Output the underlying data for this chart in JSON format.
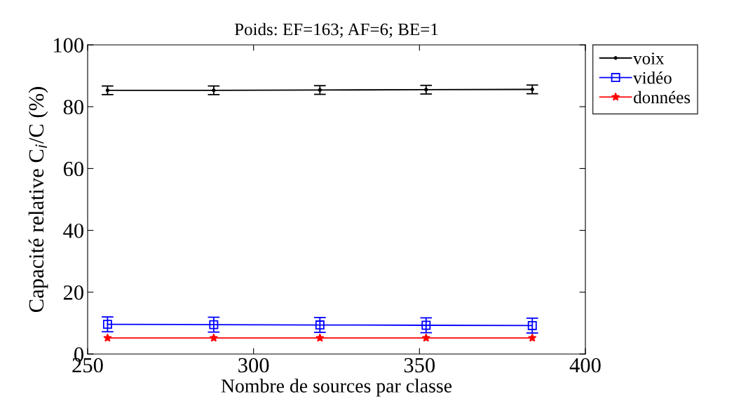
{
  "chart_data": {
    "type": "line",
    "title": "Poids: EF=163; AF=6; BE=1",
    "xlabel": "Nombre de sources par classe",
    "ylabel": "Capacité relative C$_{i}$/C (%)",
    "x": [
      256,
      288,
      320,
      352,
      384
    ],
    "series": [
      {
        "name": "voix",
        "color": "#000000",
        "marker": "point",
        "values": [
          85.3,
          85.3,
          85.4,
          85.5,
          85.6
        ],
        "errors": [
          1.4,
          1.4,
          1.4,
          1.4,
          1.4
        ]
      },
      {
        "name": "vidéo",
        "color": "#0000ff",
        "marker": "square",
        "values": [
          9.6,
          9.5,
          9.4,
          9.3,
          9.2
        ],
        "errors": [
          2.4,
          2.4,
          2.4,
          2.4,
          2.4
        ]
      },
      {
        "name": "données",
        "color": "#ff0000",
        "marker": "star",
        "values": [
          5.2,
          5.2,
          5.2,
          5.2,
          5.2
        ]
      }
    ],
    "xlim": [
      250,
      400
    ],
    "xticks": [
      250,
      300,
      350,
      400
    ],
    "ylim": [
      0,
      100
    ],
    "yticks": [
      0,
      20,
      40,
      60,
      80,
      100
    ],
    "grid": false,
    "legend": "top right",
    "line_style": "solid"
  }
}
